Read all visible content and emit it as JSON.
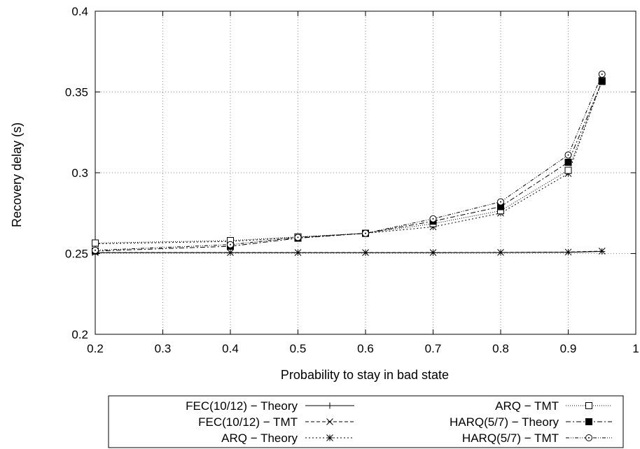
{
  "chart_data": {
    "type": "line",
    "title": "",
    "xlabel": "Probability to stay in bad state",
    "ylabel": "Recovery delay (s)",
    "xlim": [
      0.2,
      1
    ],
    "ylim": [
      0.2,
      0.4
    ],
    "xticks": [
      "0.2",
      "0.3",
      "0.4",
      "0.5",
      "0.6",
      "0.7",
      "0.8",
      "0.9",
      "1"
    ],
    "yticks": [
      "0.2",
      "0.25",
      "0.3",
      "0.35",
      "0.4"
    ],
    "grid": true,
    "legend_position": "bottom",
    "series": [
      {
        "name": "FEC(10/12) − Theory",
        "marker": "plus",
        "dash": "solid",
        "x": [
          0.2,
          0.4,
          0.5,
          0.6,
          0.7,
          0.8,
          0.9,
          0.95
        ],
        "y": [
          0.2505,
          0.2505,
          0.2505,
          0.2505,
          0.2505,
          0.2506,
          0.2508,
          0.2513
        ]
      },
      {
        "name": "FEC(10/12) − TMT",
        "marker": "cross",
        "dash": "dashed",
        "x": [
          0.2,
          0.4,
          0.5,
          0.6,
          0.7,
          0.8,
          0.9,
          0.95
        ],
        "y": [
          0.2506,
          0.2506,
          0.2506,
          0.2506,
          0.2506,
          0.2507,
          0.2509,
          0.2515
        ]
      },
      {
        "name": "ARQ − Theory",
        "marker": "star",
        "dash": "dotted",
        "x": [
          0.2,
          0.4,
          0.5,
          0.6,
          0.7,
          0.8,
          0.9,
          0.95
        ],
        "y": [
          0.256,
          0.2575,
          0.26,
          0.2625,
          0.2665,
          0.275,
          0.2995,
          0.357
        ]
      },
      {
        "name": "ARQ − TMT",
        "marker": "box",
        "dash": "densedot",
        "x": [
          0.2,
          0.4,
          0.5,
          0.6,
          0.7,
          0.8,
          0.9,
          0.95
        ],
        "y": [
          0.2565,
          0.258,
          0.2603,
          0.2625,
          0.2685,
          0.2765,
          0.3015,
          0.357
        ]
      },
      {
        "name": "HARQ(5/7) − Theory",
        "marker": "filledbox",
        "dash": "dashdot",
        "x": [
          0.2,
          0.4,
          0.5,
          0.6,
          0.7,
          0.8,
          0.9,
          0.95
        ],
        "y": [
          0.2515,
          0.2545,
          0.2595,
          0.2625,
          0.27,
          0.279,
          0.3065,
          0.3565
        ]
      },
      {
        "name": "HARQ(5/7) − TMT",
        "marker": "circle",
        "dash": "dashdotdot",
        "x": [
          0.2,
          0.4,
          0.5,
          0.6,
          0.7,
          0.8,
          0.9,
          0.95
        ],
        "y": [
          0.252,
          0.2555,
          0.26,
          0.2625,
          0.2715,
          0.282,
          0.311,
          0.361
        ]
      }
    ]
  }
}
